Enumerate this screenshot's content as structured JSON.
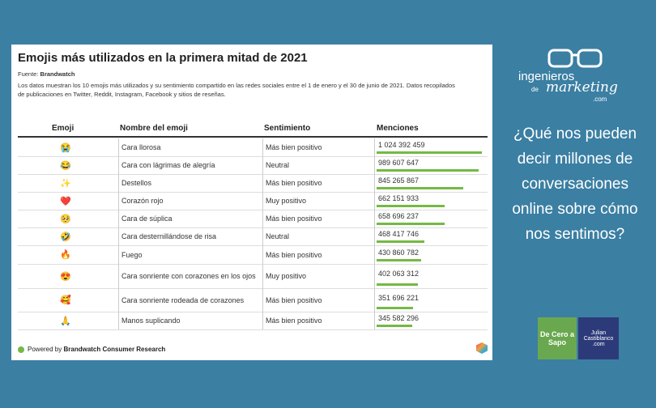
{
  "card": {
    "title": "Emojis más utilizados en la primera mitad de 2021",
    "source_label": "Fuente:",
    "source": "Brandwatch",
    "description": "Los datos muestran los 10 emojis más utilizados y su sentimiento compartido en las redes sociales entre el 1 de enero y el 30 de junio de 2021. Datos recopilados de publicaciones en Twitter, Reddit, Instagram, Facebook y sitios de reseñas.",
    "headers": [
      "Emoji",
      "Nombre del emoji",
      "Sentimiento",
      "Menciones"
    ],
    "rows": [
      {
        "emoji": "😭",
        "name": "Cara llorosa",
        "sentiment": "Más bien positivo",
        "mentions": {
          "value": 1024392459,
          "label": "1 024 392 459"
        }
      },
      {
        "emoji": "😂",
        "name": "Cara con lágrimas de alegría",
        "sentiment": "Neutral",
        "mentions": {
          "value": 989607647,
          "label": "989 607 647"
        }
      },
      {
        "emoji": "✨",
        "name": "Destellos",
        "sentiment": "Más bien positivo",
        "mentions": {
          "value": 845265867,
          "label": "845 265 867"
        }
      },
      {
        "emoji": "❤️",
        "name": "Corazón rojo",
        "sentiment": "Muy positivo",
        "mentions": {
          "value": 662151933,
          "label": "662 151 933"
        }
      },
      {
        "emoji": "🥺",
        "name": "Cara de súplica",
        "sentiment": "Más bien positivo",
        "mentions": {
          "value": 658696237,
          "label": "658 696 237"
        }
      },
      {
        "emoji": "🤣",
        "name": "Cara desternillándose de risa",
        "sentiment": "Neutral",
        "mentions": {
          "value": 468417746,
          "label": "468 417 746"
        }
      },
      {
        "emoji": "🔥",
        "name": "Fuego",
        "sentiment": "Más bien positivo",
        "mentions": {
          "value": 430860782,
          "label": "430 860 782"
        }
      },
      {
        "emoji": "😍",
        "name": "Cara sonriente con corazones en los ojos",
        "sentiment": "Muy positivo",
        "mentions": {
          "value": 402063312,
          "label": "402 063 312"
        }
      },
      {
        "emoji": "🥰",
        "name": "Cara sonriente rodeada de corazones",
        "sentiment": "Más bien positivo",
        "mentions": {
          "value": 351696221,
          "label": "351 696 221"
        }
      },
      {
        "emoji": "🙏",
        "name": "Manos suplicando",
        "sentiment": "Más bien positivo",
        "mentions": {
          "value": 345582296,
          "label": "345 582 296"
        }
      }
    ],
    "footer_prefix": "Powered by",
    "footer_brand": "Brandwatch Consumer Research"
  },
  "side": {
    "logo_top": "ingenieros",
    "logo_de": "de",
    "logo_main": "marketing",
    "logo_com": ".com",
    "question": "¿Qué nos pueden decir millones de conversaciones online sobre cómo nos sentimos?",
    "badge1": "De Cero a Sapo",
    "badge2_name": "Julian Castiblanco",
    "badge2_com": ".com"
  }
}
